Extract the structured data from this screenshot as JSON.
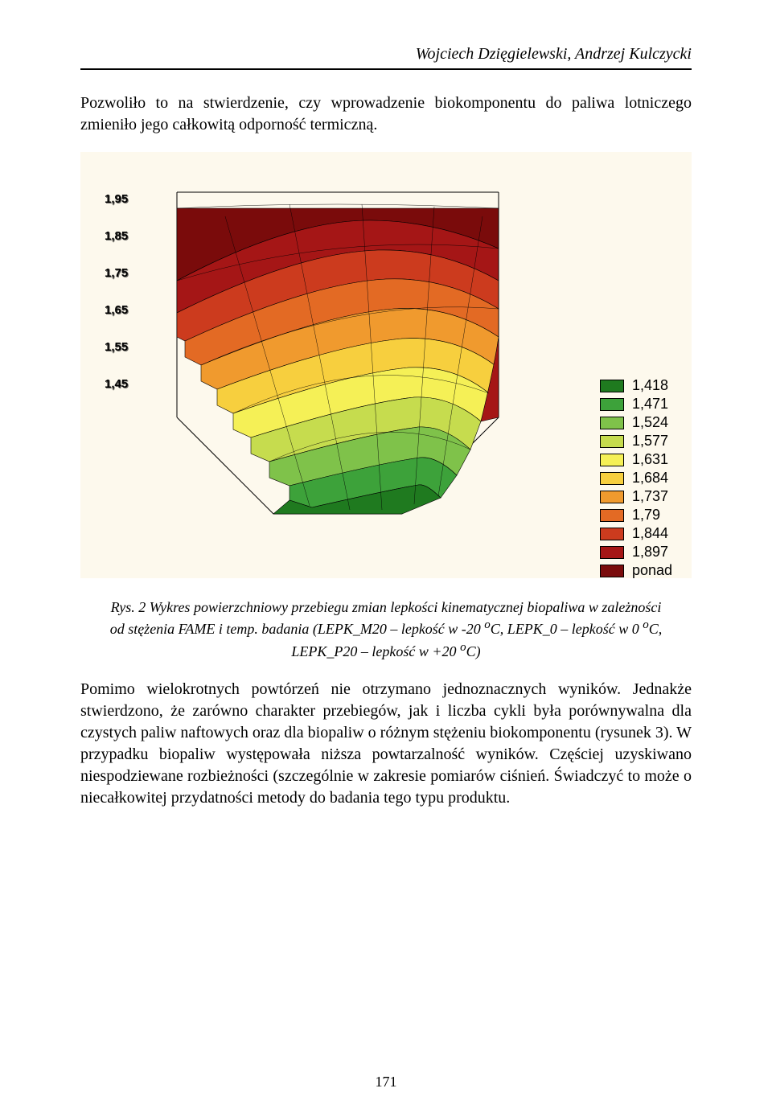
{
  "header": {
    "authors": "Wojciech Dzięgielewski, Andrzej Kulczycki"
  },
  "intro": "Pozwoliło to na stwierdzenie, czy wprowadzenie biokomponentu do paliwa lotniczego zmieniło jego całkowitą odporność termiczną.",
  "chart": {
    "type": "3d-surface",
    "background_color": "#fdf9ed",
    "grid_color": "#000000",
    "z_ticks": [
      "1,95",
      "1,85",
      "1,75",
      "1,65",
      "1,55",
      "1,45"
    ],
    "legend": [
      {
        "label": "1,418",
        "color": "#1f7a1f"
      },
      {
        "label": "1,471",
        "color": "#3da23a"
      },
      {
        "label": "1,524",
        "color": "#7fc24a"
      },
      {
        "label": "1,577",
        "color": "#c6dc4e"
      },
      {
        "label": "1,631",
        "color": "#f5f056"
      },
      {
        "label": "1,684",
        "color": "#f7cf3e"
      },
      {
        "label": "1,737",
        "color": "#f09a2e"
      },
      {
        "label": "1,79",
        "color": "#e36a24"
      },
      {
        "label": "1,844",
        "color": "#cc3b1e"
      },
      {
        "label": "1,897",
        "color": "#a51616"
      },
      {
        "label": "ponad",
        "color": "#7a0b0b"
      }
    ],
    "surface_bands": [
      "#1f7a1f",
      "#3da23a",
      "#7fc24a",
      "#c6dc4e",
      "#f5f056",
      "#f7cf3e",
      "#f09a2e",
      "#e36a24",
      "#cc3b1e",
      "#a51616",
      "#7a0b0b"
    ]
  },
  "caption": {
    "prefix": "Rys. 2 Wykres powierzchniowy przebiegu zmian lepkości kinematycznej biopaliwa w zależności od stężenia FAME i temp. badania (LEPK_M20 – lepkość w -20 ",
    "unit1": "o",
    "mid1": "C, LEPK_0 – lepkość w 0 ",
    "unit2": "o",
    "mid2": "C, LEPK_P20 – lepkość w  +20 ",
    "unit3": "o",
    "tail": "C)"
  },
  "body": "Pomimo wielokrotnych powtórzeń nie otrzymano jednoznacznych wyników. Jednakże stwierdzono, że zarówno charakter przebiegów, jak i liczba cykli była porównywalna dla czystych paliw naftowych oraz dla biopaliw o różnym stężeniu biokomponentu (rysunek 3). W przypadku biopaliw występowała niższa powtarzalność wyników. Częściej uzyskiwano niespodziewane rozbieżności (szczególnie w zakresie pomiarów ciśnień. Świadczyć to może o niecałkowitej przydatności metody do badania tego typu produktu.",
  "page": "171"
}
